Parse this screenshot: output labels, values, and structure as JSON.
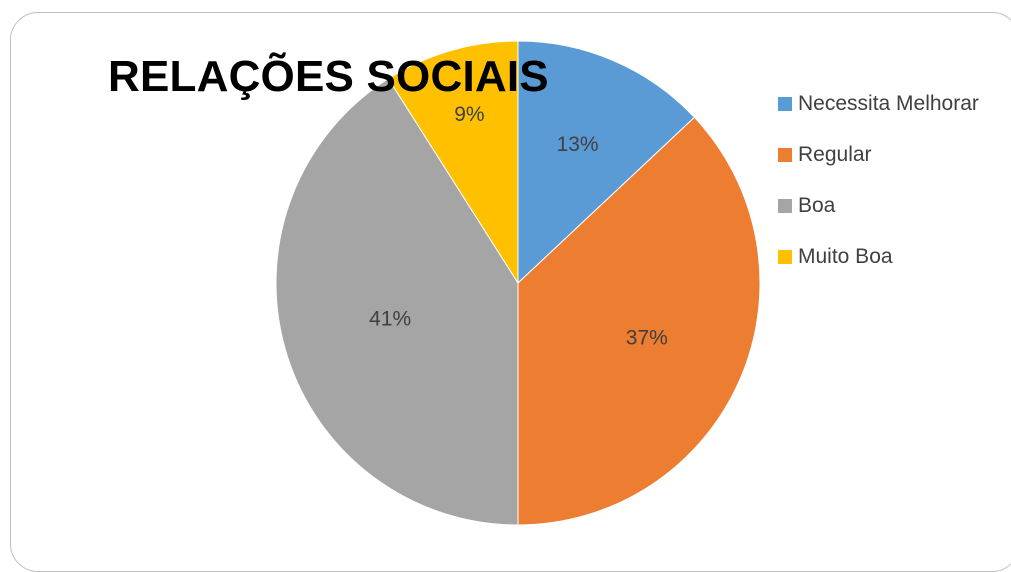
{
  "chart_data": {
    "type": "pie",
    "title": "RELAÇÕES SOCIAIS",
    "categories": [
      "Necessita Melhorar",
      "Regular",
      "Boa",
      "Muito Boa"
    ],
    "values": [
      13,
      37,
      41,
      9
    ],
    "data_labels": [
      "13%",
      "37%",
      "41%",
      "9%"
    ],
    "colors": [
      "#5b9bd5",
      "#ed7d31",
      "#a5a5a5",
      "#ffc000"
    ],
    "legend": "right",
    "start_angle_deg": 0,
    "direction": "clockwise"
  }
}
